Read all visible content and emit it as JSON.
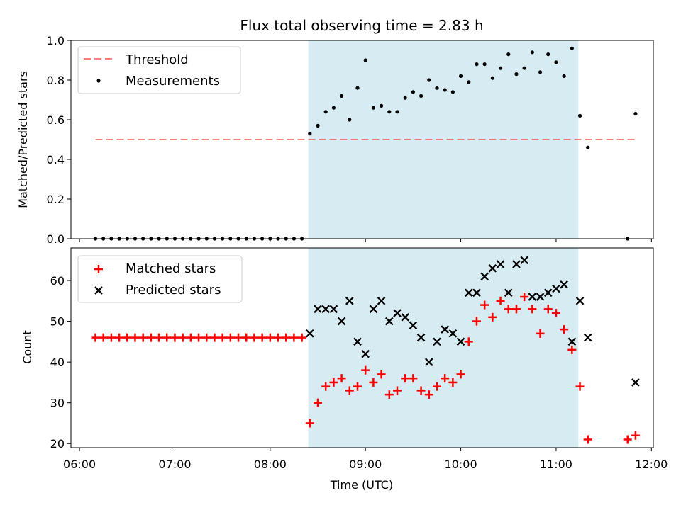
{
  "title": "Flux total observing time = 2.83 h",
  "colors": {
    "shade": "#add8e6",
    "threshold": "#ff0000",
    "measurement": "#000000",
    "matched": "#ff0000",
    "predicted": "#000000"
  },
  "chart_data": [
    {
      "type": "scatter",
      "ylabel": "Matched/Predicted stars",
      "ylim": [
        0,
        1.0
      ],
      "xlim": [
        "06:00",
        "12:00"
      ],
      "yticks": [
        "0.0",
        "0.2",
        "0.4",
        "0.6",
        "0.8",
        "1.0"
      ],
      "legend": {
        "placement": "top-left",
        "entries": [
          "Threshold",
          "Measurements"
        ]
      },
      "shaded_interval": [
        "08:24",
        "11:14"
      ],
      "threshold": {
        "name": "Threshold",
        "y": 0.5,
        "x_range": [
          "06:10",
          "11:50"
        ],
        "style": "dashed"
      },
      "series": [
        {
          "name": "Measurements",
          "marker": "dot",
          "x": [
            "06:10",
            "06:15",
            "06:20",
            "06:25",
            "06:30",
            "06:35",
            "06:40",
            "06:45",
            "06:50",
            "06:55",
            "07:00",
            "07:05",
            "07:10",
            "07:15",
            "07:20",
            "07:25",
            "07:30",
            "07:35",
            "07:40",
            "07:45",
            "07:50",
            "07:55",
            "08:00",
            "08:05",
            "08:10",
            "08:15",
            "08:20",
            "08:25",
            "08:30",
            "08:35",
            "08:40",
            "08:45",
            "08:50",
            "08:55",
            "09:00",
            "09:05",
            "09:10",
            "09:15",
            "09:20",
            "09:25",
            "09:30",
            "09:35",
            "09:40",
            "09:45",
            "09:50",
            "09:55",
            "10:00",
            "10:05",
            "10:10",
            "10:15",
            "10:20",
            "10:25",
            "10:30",
            "10:35",
            "10:40",
            "10:45",
            "10:50",
            "10:55",
            "11:00",
            "11:05",
            "11:10",
            "11:15",
            "11:20",
            "11:45",
            "11:50"
          ],
          "y": [
            0,
            0,
            0,
            0,
            0,
            0,
            0,
            0,
            0,
            0,
            0,
            0,
            0,
            0,
            0,
            0,
            0,
            0,
            0,
            0,
            0,
            0,
            0,
            0,
            0,
            0,
            0,
            0.53,
            0.57,
            0.64,
            0.66,
            0.72,
            0.6,
            0.76,
            0.9,
            0.66,
            0.67,
            0.64,
            0.64,
            0.71,
            0.74,
            0.72,
            0.8,
            0.76,
            0.75,
            0.74,
            0.82,
            0.79,
            0.88,
            0.88,
            0.81,
            0.86,
            0.93,
            0.83,
            0.86,
            0.94,
            0.84,
            0.93,
            0.89,
            0.82,
            0.96,
            0.62,
            0.46,
            0,
            0.63
          ]
        }
      ]
    },
    {
      "type": "scatter",
      "xlabel": "Time (UTC)",
      "ylabel": "Count",
      "ylim": [
        19,
        68
      ],
      "xlim": [
        "06:00",
        "12:00"
      ],
      "xticks": [
        "06:00",
        "07:00",
        "08:00",
        "09:00",
        "10:00",
        "11:00",
        "12:00"
      ],
      "yticks": [
        "20",
        "30",
        "40",
        "50",
        "60"
      ],
      "legend": {
        "placement": "top-left",
        "entries": [
          "Matched stars",
          "Predicted stars"
        ]
      },
      "shaded_interval": [
        "08:24",
        "11:14"
      ],
      "series": [
        {
          "name": "Matched stars",
          "marker": "plus",
          "x": [
            "06:10",
            "06:15",
            "06:20",
            "06:25",
            "06:30",
            "06:35",
            "06:40",
            "06:45",
            "06:50",
            "06:55",
            "07:00",
            "07:05",
            "07:10",
            "07:15",
            "07:20",
            "07:25",
            "07:30",
            "07:35",
            "07:40",
            "07:45",
            "07:50",
            "07:55",
            "08:00",
            "08:05",
            "08:10",
            "08:15",
            "08:20",
            "08:25",
            "08:30",
            "08:35",
            "08:40",
            "08:45",
            "08:50",
            "08:55",
            "09:00",
            "09:05",
            "09:10",
            "09:15",
            "09:20",
            "09:25",
            "09:30",
            "09:35",
            "09:40",
            "09:45",
            "09:50",
            "09:55",
            "10:00",
            "10:05",
            "10:10",
            "10:15",
            "10:20",
            "10:25",
            "10:30",
            "10:35",
            "10:40",
            "10:45",
            "10:50",
            "10:55",
            "11:00",
            "11:05",
            "11:10",
            "11:15",
            "11:20",
            "11:45",
            "11:50"
          ],
          "y": [
            46,
            46,
            46,
            46,
            46,
            46,
            46,
            46,
            46,
            46,
            46,
            46,
            46,
            46,
            46,
            46,
            46,
            46,
            46,
            46,
            46,
            46,
            46,
            46,
            46,
            46,
            46,
            25,
            30,
            34,
            35,
            36,
            33,
            34,
            38,
            35,
            37,
            32,
            33,
            36,
            36,
            33,
            32,
            34,
            36,
            35,
            37,
            45,
            50,
            54,
            51,
            55,
            53,
            53,
            56,
            53,
            47,
            53,
            52,
            48,
            43,
            34,
            21,
            21,
            22
          ]
        },
        {
          "name": "Predicted stars",
          "marker": "x",
          "x": [
            "08:25",
            "08:30",
            "08:35",
            "08:40",
            "08:45",
            "08:50",
            "08:55",
            "09:00",
            "09:05",
            "09:10",
            "09:15",
            "09:20",
            "09:25",
            "09:30",
            "09:35",
            "09:40",
            "09:45",
            "09:50",
            "09:55",
            "10:00",
            "10:05",
            "10:10",
            "10:15",
            "10:20",
            "10:25",
            "10:30",
            "10:35",
            "10:40",
            "10:45",
            "10:50",
            "10:55",
            "11:00",
            "11:05",
            "11:10",
            "11:15",
            "11:20",
            "11:50"
          ],
          "y": [
            47,
            53,
            53,
            53,
            50,
            55,
            45,
            42,
            53,
            55,
            50,
            52,
            51,
            49,
            46,
            40,
            45,
            48,
            47,
            45,
            57,
            57,
            61,
            63,
            64,
            57,
            64,
            65,
            56,
            56,
            57,
            58,
            59,
            45,
            55,
            46,
            35
          ]
        }
      ]
    }
  ]
}
